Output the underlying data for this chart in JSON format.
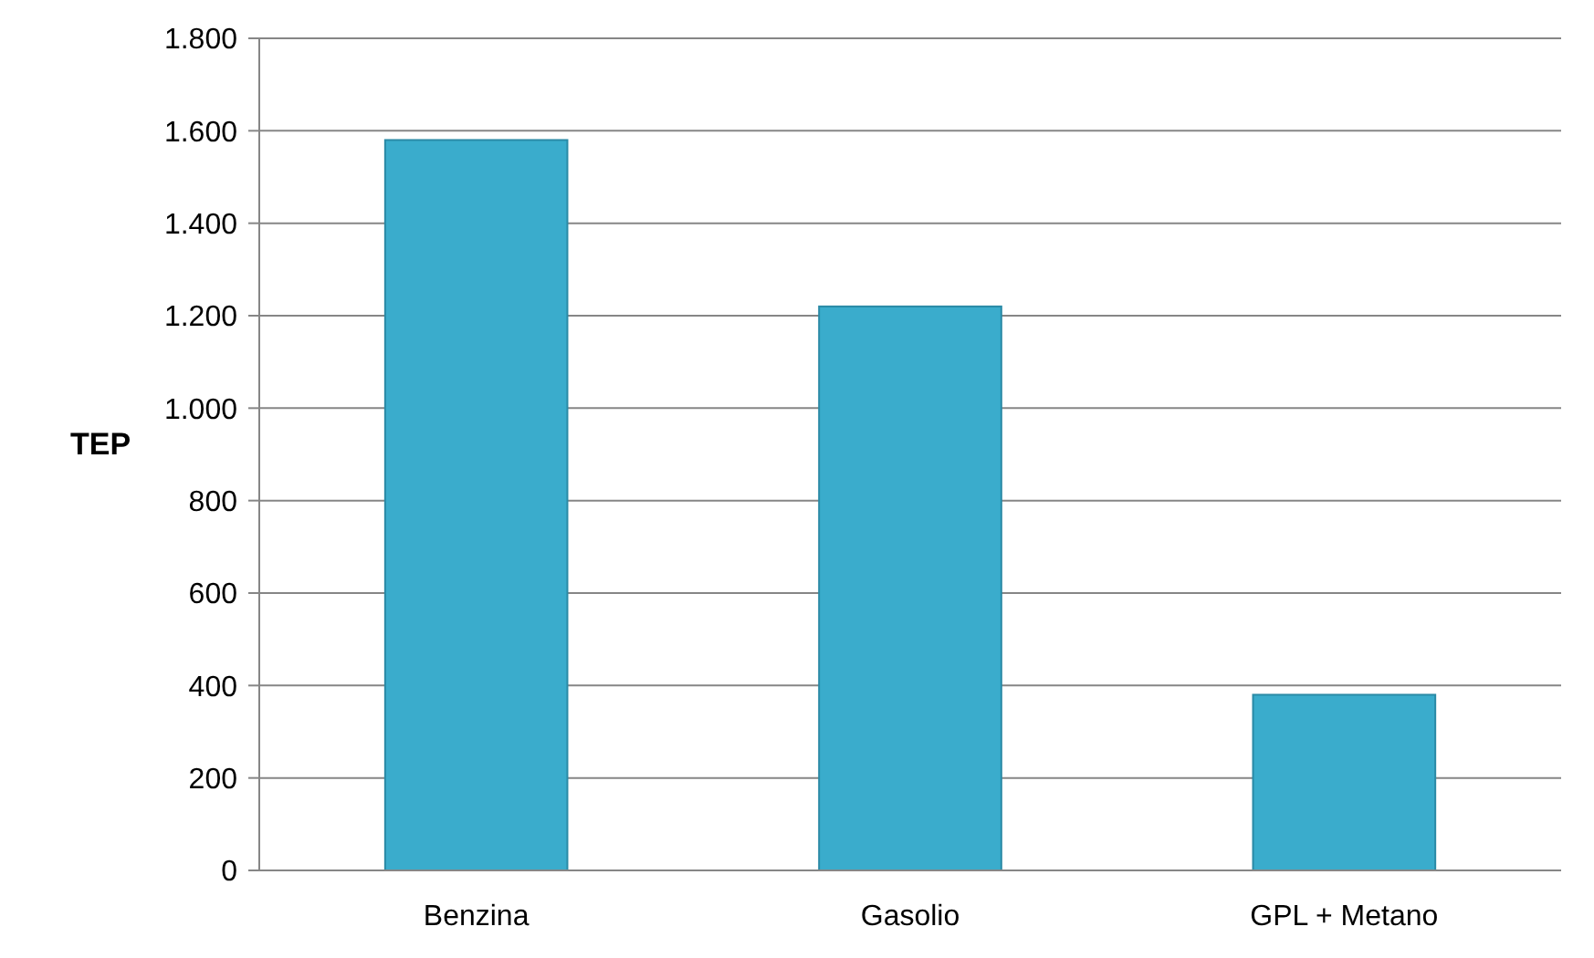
{
  "chart_data": {
    "type": "bar",
    "ylabel": "TEP",
    "categories": [
      "Benzina",
      "Gasolio",
      "GPL + Metano"
    ],
    "values": [
      1580,
      1220,
      380
    ],
    "color": "#3aaccc",
    "ylim": [
      0,
      1800
    ],
    "yticks": [
      0,
      200,
      400,
      600,
      800,
      {
        "value": 1000,
        "label": "1.000"
      },
      {
        "value": 1200,
        "label": "1.200"
      },
      {
        "value": 1400,
        "label": "1.400"
      },
      {
        "value": 1600,
        "label": "1.600"
      },
      {
        "value": 1800,
        "label": "1.800"
      }
    ],
    "grid": "y"
  }
}
